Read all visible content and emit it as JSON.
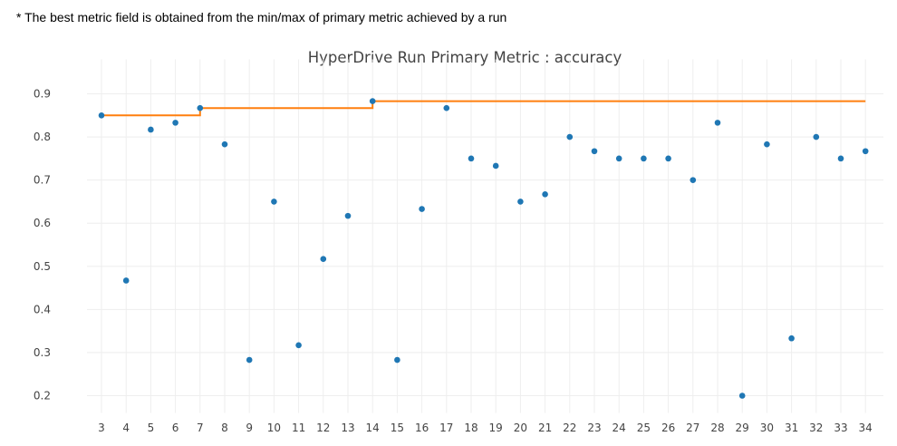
{
  "footnote": "* The best metric field is obtained from the min/max of primary metric achieved by a run",
  "chart_data": {
    "type": "scatter",
    "title": "HyperDrive Run Primary Metric : accuracy",
    "xlabel": "",
    "ylabel": "",
    "categories": [
      "3",
      "4",
      "5",
      "6",
      "7",
      "8",
      "9",
      "10",
      "11",
      "12",
      "13",
      "14",
      "15",
      "16",
      "17",
      "18",
      "19",
      "20",
      "21",
      "22",
      "23",
      "24",
      "25",
      "26",
      "27",
      "28",
      "29",
      "30",
      "31",
      "32",
      "33",
      "34"
    ],
    "ylim": [
      0.16,
      0.98
    ],
    "yticks": [
      "0.2",
      "0.3",
      "0.4",
      "0.5",
      "0.6",
      "0.7",
      "0.8",
      "0.9"
    ],
    "grid": true,
    "series": [
      {
        "type": "scatter",
        "color": "#1f77b4",
        "values": [
          0.85,
          0.467,
          0.817,
          0.833,
          0.867,
          0.783,
          0.283,
          0.65,
          0.317,
          0.517,
          0.617,
          0.883,
          0.283,
          0.633,
          0.867,
          0.75,
          0.733,
          0.65,
          0.667,
          0.8,
          0.767,
          0.75,
          0.75,
          0.75,
          0.7,
          0.833,
          0.2,
          0.783,
          0.333,
          0.8,
          0.75,
          0.767
        ]
      },
      {
        "type": "step-line",
        "color": "#ff7f0e",
        "values": [
          0.85,
          0.85,
          0.85,
          0.85,
          0.867,
          0.867,
          0.867,
          0.867,
          0.867,
          0.867,
          0.867,
          0.883,
          0.883,
          0.883,
          0.883,
          0.883,
          0.883,
          0.883,
          0.883,
          0.883,
          0.883,
          0.883,
          0.883,
          0.883,
          0.883,
          0.883,
          0.883,
          0.883,
          0.883,
          0.883,
          0.883,
          0.883
        ]
      }
    ]
  }
}
